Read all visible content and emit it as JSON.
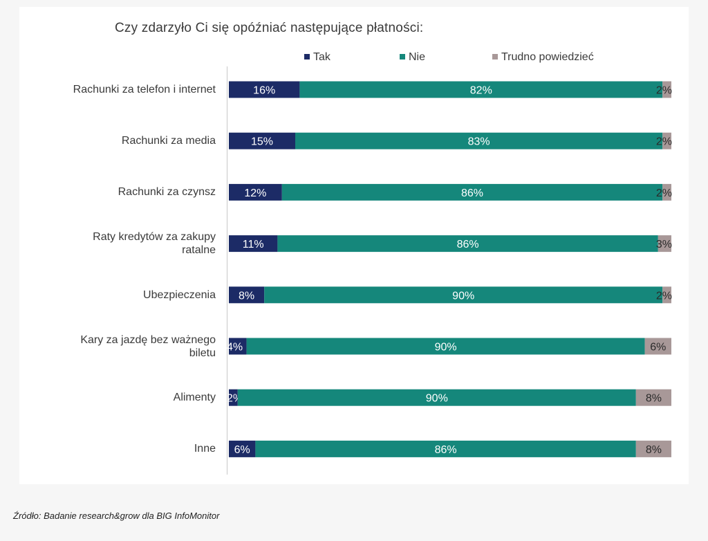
{
  "source": "Źródło: Badanie research&grow dla BIG InfoMonitor",
  "colors": {
    "tak": "#1c2b66",
    "nie": "#15877b",
    "trudno": "#a89898"
  },
  "chart_data": {
    "type": "bar",
    "orientation": "horizontal",
    "stacked": true,
    "title": "Czy zdarzyło Ci się opóźniać następujące płatności:",
    "xlabel": "",
    "ylabel": "",
    "xlim": [
      0,
      100
    ],
    "legend_position": "top",
    "grid": false,
    "categories": [
      "Rachunki za telefon i internet",
      "Rachunki za media",
      "Rachunki za czynsz",
      "Raty kredytów za zakupy ratalne",
      "Ubezpieczenia",
      "Kary za jazdę bez ważnego biletu",
      "Alimenty",
      "Inne"
    ],
    "category_lines": [
      [
        "Rachunki za telefon i internet"
      ],
      [
        "Rachunki za media"
      ],
      [
        "Rachunki za czynsz"
      ],
      [
        "Raty kredytów za zakupy",
        "ratalne"
      ],
      [
        "Ubezpieczenia"
      ],
      [
        "Kary za jazdę bez ważnego",
        "biletu"
      ],
      [
        "Alimenty"
      ],
      [
        "Inne"
      ]
    ],
    "series": [
      {
        "name": "Tak",
        "values": [
          16,
          15,
          12,
          11,
          8,
          4,
          2,
          6
        ],
        "labels": [
          "16%",
          "15%",
          "12%",
          "11%",
          "8%",
          "4%",
          "2%",
          "6%"
        ]
      },
      {
        "name": "Nie",
        "values": [
          82,
          83,
          86,
          86,
          90,
          90,
          90,
          86
        ],
        "labels": [
          "82%",
          "83%",
          "86%",
          "86%",
          "90%",
          "90%",
          "90%",
          "86%"
        ]
      },
      {
        "name": "Trudno powiedzieć",
        "values": [
          2,
          2,
          2,
          3,
          2,
          6,
          8,
          8
        ],
        "labels": [
          "2%",
          "2%",
          "2%",
          "3%",
          "2%",
          "6%",
          "8%",
          "8%"
        ]
      }
    ]
  }
}
